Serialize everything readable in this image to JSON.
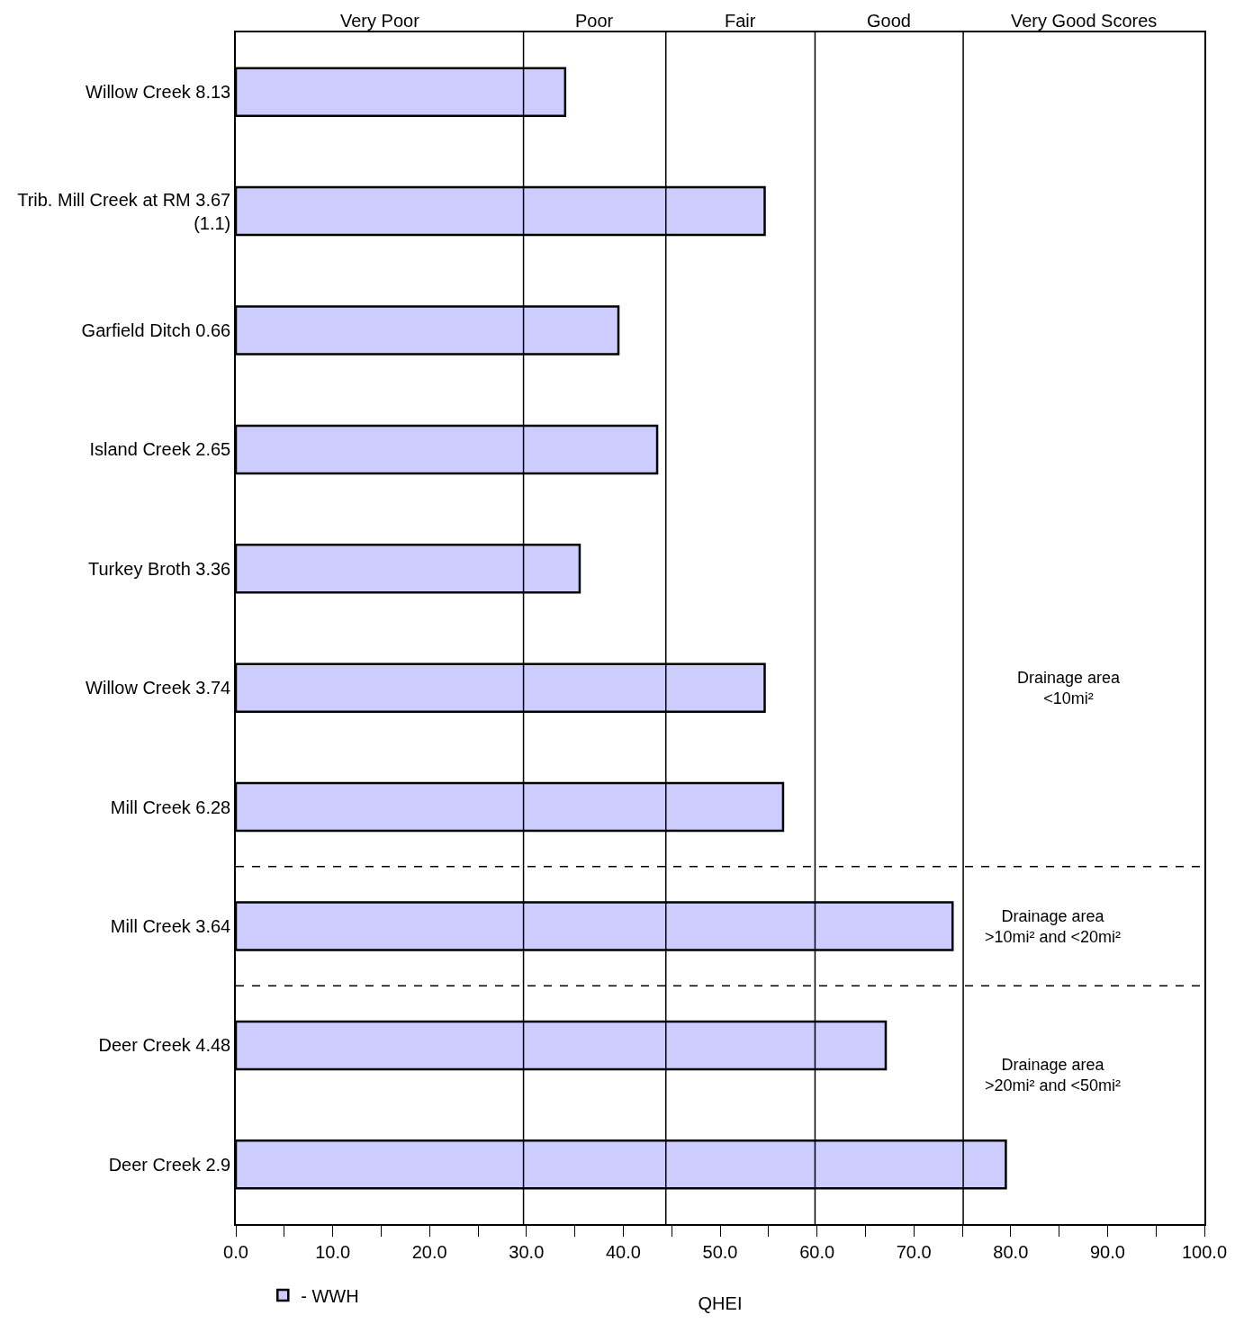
{
  "chart_data": {
    "type": "bar",
    "orientation": "horizontal",
    "xlabel": "QHEI",
    "categories": [
      "Willow Creek 8.13",
      "Trib. Mill Creek at RM 3.67\n(1.1)",
      "Garfield Ditch 0.66",
      "Island Creek 2.65",
      "Turkey Broth 3.36",
      "Willow Creek 3.74",
      "Mill Creek 6.28",
      "Mill Creek 3.64",
      "Deer Creek 4.48",
      "Deer Creek 2.9"
    ],
    "series": [
      {
        "name": "- WWH",
        "color": "#ccccff",
        "values": [
          34.0,
          54.6,
          39.5,
          43.5,
          35.5,
          54.6,
          56.5,
          74.0,
          67.1,
          79.5
        ]
      }
    ],
    "xlim": [
      0,
      100
    ],
    "xticks": [
      {
        "value": 0,
        "label": "0.0"
      },
      {
        "value": 5,
        "label": null
      },
      {
        "value": 10,
        "label": "10.0"
      },
      {
        "value": 15,
        "label": null
      },
      {
        "value": 20,
        "label": "20.0"
      },
      {
        "value": 25,
        "label": null
      },
      {
        "value": 30,
        "label": "30.0"
      },
      {
        "value": 35,
        "label": null
      },
      {
        "value": 40,
        "label": "40.0"
      },
      {
        "value": 45,
        "label": null
      },
      {
        "value": 50,
        "label": "50.0"
      },
      {
        "value": 55,
        "label": null
      },
      {
        "value": 60,
        "label": "60.0"
      },
      {
        "value": 65,
        "label": null
      },
      {
        "value": 70,
        "label": "70.0"
      },
      {
        "value": 75,
        "label": null
      },
      {
        "value": 80,
        "label": "80.0"
      },
      {
        "value": 85,
        "label": null
      },
      {
        "value": 90,
        "label": "90.0"
      },
      {
        "value": 95,
        "label": null
      },
      {
        "value": 100,
        "label": "100.0"
      }
    ],
    "ref_lines": [
      {
        "axis": "x",
        "value": 29.7,
        "color": "#000000"
      },
      {
        "axis": "x",
        "value": 44.4,
        "color": "#000000"
      },
      {
        "axis": "x",
        "value": 59.8,
        "color": "#000000"
      },
      {
        "axis": "x",
        "value": 75.1,
        "color": "#000000"
      }
    ],
    "annotations": [
      "Very Poor",
      "Poor",
      "Fair",
      "Good",
      "Very Good Scores",
      "Drainage area\n<10mi²",
      "Drainage area\n>10mi² and <20mi²",
      "Drainage area\n>20mi² and <50mi²"
    ],
    "legend": "bottom left"
  }
}
